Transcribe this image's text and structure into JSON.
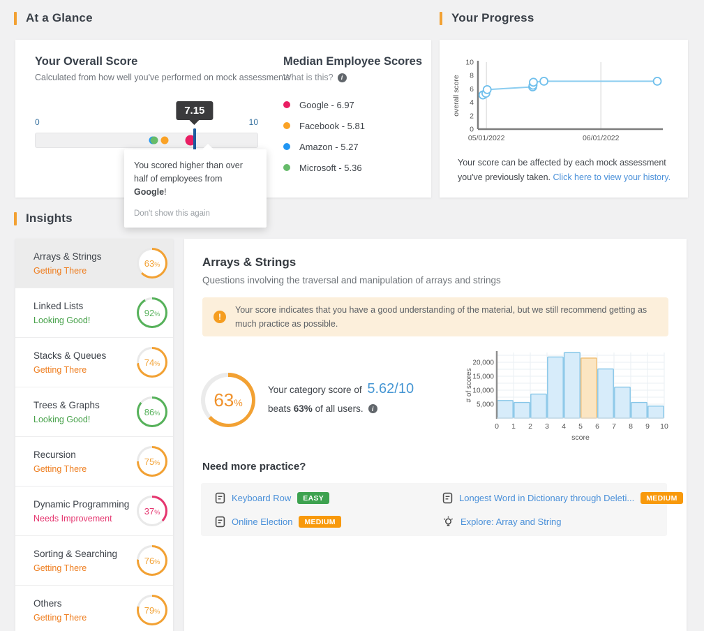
{
  "accent_color": "#f2a133",
  "percent_sign": "%",
  "at_a_glance": {
    "section_title": "At a Glance",
    "overall": {
      "title": "Your Overall Score",
      "subtitle": "Calculated from how well you've performed on mock assessments",
      "scale_min": "0",
      "scale_max": "10",
      "user_score": 7.15,
      "user_score_label": "7.15",
      "marker_color": "#1d5c9f",
      "tooltip_prefix": "You scored higher than over half of employees from ",
      "tooltip_company": "Google",
      "tooltip_suffix": "!",
      "tooltip_dismiss": "Don't show this again"
    },
    "median": {
      "title": "Median Employee Scores",
      "what_is_this": "What is this?",
      "companies": [
        {
          "name": "Google",
          "score": 6.97,
          "label": "Google - 6.97",
          "color": "#e91e63",
          "highlight": true
        },
        {
          "name": "Facebook",
          "score": 5.81,
          "label": "Facebook - 5.81",
          "color": "#faa226",
          "highlight": false
        },
        {
          "name": "Amazon",
          "score": 5.27,
          "label": "Amazon - 5.27",
          "color": "#2196f3",
          "highlight": false
        },
        {
          "name": "Microsoft",
          "score": 5.36,
          "label": "Microsoft - 5.36",
          "color": "#66bb6a",
          "highlight": false
        }
      ]
    }
  },
  "progress": {
    "section_title": "Your Progress",
    "caption_text": "Your score can be affected by each mock assessment you've previously taken. ",
    "caption_link": "Click here to view your history."
  },
  "insights": {
    "section_title": "Insights",
    "status_styles": {
      "warn": {
        "text": "#ee7d1e",
        "ring": "#f2a133"
      },
      "good": {
        "text": "#46a149",
        "ring": "#56b15a"
      },
      "bad": {
        "text": "#e5356f",
        "ring": "#e5356f"
      }
    },
    "categories": [
      {
        "name": "Arrays & Strings",
        "status": "Getting There",
        "type": "warn",
        "percent": 63,
        "selected": true
      },
      {
        "name": "Linked Lists",
        "status": "Looking Good!",
        "type": "good",
        "percent": 92,
        "selected": false
      },
      {
        "name": "Stacks & Queues",
        "status": "Getting There",
        "type": "warn",
        "percent": 74,
        "selected": false
      },
      {
        "name": "Trees & Graphs",
        "status": "Looking Good!",
        "type": "good",
        "percent": 86,
        "selected": false
      },
      {
        "name": "Recursion",
        "status": "Getting There",
        "type": "warn",
        "percent": 75,
        "selected": false
      },
      {
        "name": "Dynamic Programming",
        "status": "Needs Improvement",
        "type": "bad",
        "percent": 37,
        "selected": false
      },
      {
        "name": "Sorting & Searching",
        "status": "Getting There",
        "type": "warn",
        "percent": 76,
        "selected": false
      },
      {
        "name": "Others",
        "status": "Getting There",
        "type": "warn",
        "percent": 79,
        "selected": false
      }
    ],
    "detail": {
      "title": "Arrays & Strings",
      "subtitle": "Questions involving the traversal and manipulation of arrays and strings",
      "alert_text": "Your score indicates that you have a good understanding of the material, but we still recommend getting as much practice as possible.",
      "percent_label": "63",
      "score_prefix": "Your category score of",
      "score_value": "5.62/10",
      "beats_prefix": "beats ",
      "beats_bold": "63%",
      "beats_suffix": " of all users.",
      "practice_title": "Need more practice?",
      "practice_items": [
        {
          "label": "Keyboard Row",
          "badge": "EASY",
          "badge_color": "#3da24f",
          "icon": "document"
        },
        {
          "label": "Online Election",
          "badge": "MEDIUM",
          "badge_color": "#f8990b",
          "icon": "document"
        },
        {
          "label": "Longest Word in Dictionary through Deleti...",
          "badge": "MEDIUM",
          "badge_color": "#f8990b",
          "icon": "document"
        },
        {
          "label": "Explore: Array and String",
          "badge": "",
          "badge_color": "",
          "icon": "lightbulb"
        }
      ]
    }
  },
  "chart_data": [
    {
      "id": "progress-line",
      "type": "line",
      "title": "Your Progress",
      "xlabel": "",
      "ylabel": "overall score",
      "ylim": [
        0,
        10
      ],
      "y_ticks": [
        0,
        2,
        4,
        6,
        8,
        10
      ],
      "x_ticks": [
        {
          "label": "05/01/2022",
          "pos": 0.046
        },
        {
          "label": "06/01/2022",
          "pos": 0.665
        }
      ],
      "grid": "x-only",
      "line_color": "#8ccdf0",
      "marker_stroke": "#6fbfec",
      "points": [
        {
          "x": 0.027,
          "y": 5.1
        },
        {
          "x": 0.043,
          "y": 5.35
        },
        {
          "x": 0.05,
          "y": 5.9
        },
        {
          "x": 0.296,
          "y": 6.3
        },
        {
          "x": 0.298,
          "y": 6.55
        },
        {
          "x": 0.3,
          "y": 7.0
        },
        {
          "x": 0.357,
          "y": 7.15
        },
        {
          "x": 0.97,
          "y": 7.15
        }
      ]
    },
    {
      "id": "score-histogram",
      "type": "bar",
      "title": "",
      "xlabel": "score",
      "ylabel": "# of scores",
      "categories": [
        "0",
        "1",
        "2",
        "3",
        "4",
        "5",
        "6",
        "7",
        "8",
        "9",
        "10"
      ],
      "values": [
        6300,
        5600,
        8600,
        21900,
        23500,
        21500,
        17600,
        11100,
        5600,
        4300
      ],
      "highlight_index": 5,
      "ylim": [
        0,
        25000
      ],
      "y_tick_step": 5000,
      "y_tick_labels": [
        "5,000",
        "10,000",
        "15,000",
        "20,000"
      ],
      "grid": true,
      "bar_fill": "#d7ecfa",
      "bar_stroke": "#86c6e8",
      "highlight_fill": "#fbe5c2",
      "highlight_stroke": "#f0c078"
    }
  ]
}
